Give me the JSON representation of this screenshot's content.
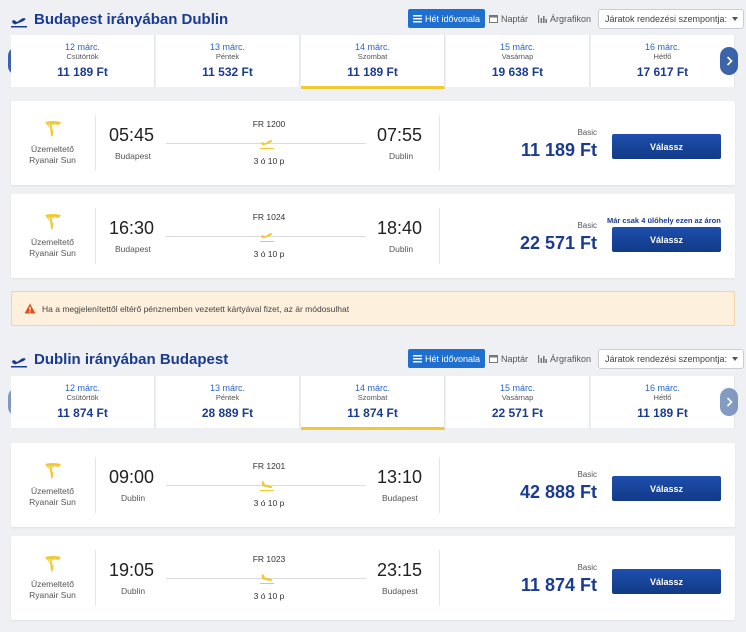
{
  "outbound": {
    "title": "Budapest irányában Dublin",
    "view_tabs": [
      {
        "label": "Hét idővonala",
        "icon": "timeline-icon",
        "active": true
      },
      {
        "label": "Naptár",
        "icon": "calendar-icon",
        "active": false
      },
      {
        "label": "Árgrafikon",
        "icon": "bar-chart-icon",
        "active": false
      }
    ],
    "sort_placeholder": "Járatok rendezési szempontja:",
    "dates": [
      {
        "date": "12 márc.",
        "weekday": "Csütörtök",
        "price": "11 189 Ft",
        "selected": false
      },
      {
        "date": "13 márc.",
        "weekday": "Péntek",
        "price": "11 532 Ft",
        "selected": false
      },
      {
        "date": "14 márc.",
        "weekday": "Szombat",
        "price": "11 189 Ft",
        "selected": true
      },
      {
        "date": "15 márc.",
        "weekday": "Vasárnap",
        "price": "19 638 Ft",
        "selected": false
      },
      {
        "date": "16 márc.",
        "weekday": "Hétfő",
        "price": "17 617 Ft",
        "selected": false
      }
    ],
    "flights": [
      {
        "operator_label": "Üzemeltető",
        "operator": "Ryanair Sun",
        "flight_no": "FR 1200",
        "dep_time": "05:45",
        "dep_city": "Budapest",
        "arr_time": "07:55",
        "arr_city": "Dublin",
        "duration": "3 ó 10 p",
        "fare_class": "Basic",
        "price": "11 189 Ft",
        "seats_note": "",
        "button": "Válassz"
      },
      {
        "operator_label": "Üzemeltető",
        "operator": "Ryanair Sun",
        "flight_no": "FR 1024",
        "dep_time": "16:30",
        "dep_city": "Budapest",
        "arr_time": "18:40",
        "arr_city": "Dublin",
        "duration": "3 ó 10 p",
        "fare_class": "Basic",
        "price": "22 571 Ft",
        "seats_note": "Már csak 4 ülőhely ezen az áron",
        "button": "Válassz"
      }
    ]
  },
  "warning": {
    "text": "Ha a megjelenítettől eltérő pénznemben vezetett kártyával fizet, az ár módosulhat",
    "color": "#fdf0dc"
  },
  "inbound": {
    "title": "Dublin irányában Budapest",
    "view_tabs": [
      {
        "label": "Hét idővonala",
        "icon": "timeline-icon",
        "active": true
      },
      {
        "label": "Naptár",
        "icon": "calendar-icon",
        "active": false
      },
      {
        "label": "Árgrafikon",
        "icon": "bar-chart-icon",
        "active": false
      }
    ],
    "sort_placeholder": "Járatok rendezési szempontja:",
    "dates": [
      {
        "date": "12 márc.",
        "weekday": "Csütörtök",
        "price": "11 874 Ft",
        "selected": false
      },
      {
        "date": "13 márc.",
        "weekday": "Péntek",
        "price": "28 889 Ft",
        "selected": false
      },
      {
        "date": "14 márc.",
        "weekday": "Szombat",
        "price": "11 874 Ft",
        "selected": true
      },
      {
        "date": "15 márc.",
        "weekday": "Vasárnap",
        "price": "22 571 Ft",
        "selected": false
      },
      {
        "date": "16 márc.",
        "weekday": "Hétfő",
        "price": "11 189 Ft",
        "selected": false
      }
    ],
    "flights": [
      {
        "operator_label": "Üzemeltető",
        "operator": "Ryanair Sun",
        "flight_no": "FR 1201",
        "dep_time": "09:00",
        "dep_city": "Dublin",
        "arr_time": "13:10",
        "arr_city": "Budapest",
        "duration": "3 ó 10 p",
        "fare_class": "Basic",
        "price": "42 888 Ft",
        "seats_note": "",
        "button": "Válassz"
      },
      {
        "operator_label": "Üzemeltető",
        "operator": "Ryanair Sun",
        "flight_no": "FR 1023",
        "dep_time": "19:05",
        "dep_city": "Dublin",
        "arr_time": "23:15",
        "arr_city": "Budapest",
        "duration": "3 ó 10 p",
        "fare_class": "Basic",
        "price": "11 874 Ft",
        "seats_note": "",
        "button": "Válassz"
      }
    ]
  },
  "colors": {
    "brand_blue": "#1a3b8f",
    "accent_yellow": "#f1c933",
    "active_tab": "#1f6fd1"
  }
}
